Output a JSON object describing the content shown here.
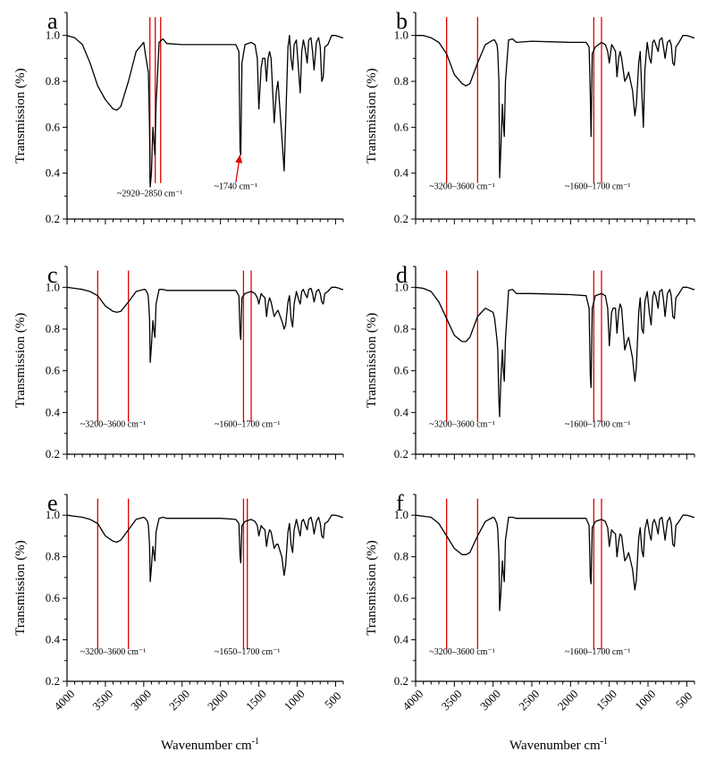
{
  "figure": {
    "xlabel": "Wavenumber cm",
    "xlabel_sup": "-1",
    "ylabel": "Transmission (%)"
  },
  "colors": {
    "line": "#000000",
    "marker": "#e00000"
  },
  "chart_data": [
    {
      "type": "line",
      "panel": "a",
      "xlabel": "Wavenumber cm-1",
      "ylabel": "Transmission (%)",
      "xlim": [
        4000,
        400
      ],
      "ylim": [
        0.2,
        1.1
      ],
      "xticks": [
        4000,
        3500,
        3000,
        2500,
        2000,
        1500,
        1000,
        500
      ],
      "yticks": [
        0.2,
        0.4,
        0.6,
        0.8,
        1.0
      ],
      "grid": false,
      "markers": [
        2920,
        2850,
        2780
      ],
      "annotations": [
        {
          "text": "~2920–2850 cm⁻¹",
          "x": 2920,
          "y": 0.3
        },
        {
          "text": "~1740 cm⁻¹",
          "x": 1800,
          "y": 0.33
        }
      ],
      "arrow": {
        "from": [
          1800,
          0.36
        ],
        "to": [
          1745,
          0.48
        ]
      },
      "x": [
        4000,
        3900,
        3800,
        3700,
        3600,
        3500,
        3400,
        3350,
        3300,
        3200,
        3100,
        3000,
        2980,
        2950,
        2940,
        2925,
        2915,
        2900,
        2880,
        2870,
        2855,
        2840,
        2800,
        2750,
        2700,
        2500,
        2000,
        1800,
        1760,
        1745,
        1735,
        1720,
        1680,
        1600,
        1550,
        1520,
        1500,
        1470,
        1450,
        1420,
        1400,
        1380,
        1360,
        1340,
        1300,
        1270,
        1250,
        1200,
        1170,
        1150,
        1120,
        1100,
        1080,
        1060,
        1040,
        1010,
        980,
        960,
        940,
        920,
        900,
        870,
        850,
        820,
        800,
        780,
        750,
        720,
        700,
        680,
        660,
        640,
        600,
        550,
        500,
        450,
        420,
        400
      ],
      "y": [
        1.0,
        0.99,
        0.96,
        0.88,
        0.78,
        0.72,
        0.68,
        0.675,
        0.69,
        0.8,
        0.93,
        0.97,
        0.92,
        0.86,
        0.84,
        0.6,
        0.34,
        0.4,
        0.6,
        0.55,
        0.48,
        0.7,
        0.97,
        0.985,
        0.965,
        0.96,
        0.96,
        0.96,
        0.93,
        0.5,
        0.48,
        0.88,
        0.96,
        0.97,
        0.96,
        0.9,
        0.68,
        0.86,
        0.9,
        0.9,
        0.8,
        0.9,
        0.93,
        0.9,
        0.62,
        0.76,
        0.8,
        0.56,
        0.41,
        0.62,
        0.95,
        1.0,
        0.9,
        0.85,
        0.96,
        0.98,
        0.84,
        0.75,
        0.93,
        0.98,
        0.95,
        0.88,
        0.98,
        0.99,
        0.93,
        0.85,
        0.97,
        0.99,
        0.95,
        0.8,
        0.82,
        0.95,
        0.96,
        1.0,
        1.0,
        0.995,
        0.99,
        0.99
      ]
    },
    {
      "type": "line",
      "panel": "b",
      "xlabel": "Wavenumber cm-1",
      "ylabel": "Transmission (%)",
      "xlim": [
        4000,
        400
      ],
      "ylim": [
        0.2,
        1.1
      ],
      "xticks": [
        4000,
        3500,
        3000,
        2500,
        2000,
        1500,
        1000,
        500
      ],
      "yticks": [
        0.2,
        0.4,
        0.6,
        0.8,
        1.0
      ],
      "grid": false,
      "markers": [
        3600,
        3200,
        1700,
        1600
      ],
      "annotations": [
        {
          "text": "~3200–3600 cm⁻¹",
          "x": 3400,
          "y": 0.33
        },
        {
          "text": "~1600–1700 cm⁻¹",
          "x": 1650,
          "y": 0.33
        }
      ],
      "x": [
        4000,
        3900,
        3800,
        3700,
        3600,
        3500,
        3400,
        3350,
        3300,
        3200,
        3100,
        3000,
        2980,
        2950,
        2940,
        2925,
        2915,
        2900,
        2880,
        2870,
        2855,
        2840,
        2800,
        2750,
        2700,
        2500,
        2000,
        1800,
        1760,
        1745,
        1735,
        1720,
        1680,
        1600,
        1550,
        1520,
        1500,
        1470,
        1450,
        1420,
        1400,
        1380,
        1360,
        1340,
        1300,
        1270,
        1250,
        1200,
        1170,
        1150,
        1120,
        1100,
        1080,
        1060,
        1040,
        1010,
        980,
        960,
        940,
        920,
        900,
        870,
        850,
        820,
        800,
        780,
        750,
        720,
        700,
        680,
        660,
        640,
        600,
        550,
        500,
        450,
        420,
        400
      ],
      "y": [
        1.0,
        1.0,
        0.99,
        0.97,
        0.92,
        0.83,
        0.79,
        0.78,
        0.79,
        0.88,
        0.96,
        0.98,
        0.98,
        0.96,
        0.93,
        0.8,
        0.38,
        0.5,
        0.7,
        0.63,
        0.56,
        0.8,
        0.98,
        0.985,
        0.97,
        0.975,
        0.97,
        0.97,
        0.95,
        0.75,
        0.56,
        0.92,
        0.95,
        0.97,
        0.96,
        0.93,
        0.88,
        0.96,
        0.95,
        0.93,
        0.82,
        0.9,
        0.93,
        0.9,
        0.8,
        0.82,
        0.84,
        0.76,
        0.65,
        0.7,
        0.88,
        0.93,
        0.75,
        0.6,
        0.85,
        0.97,
        0.9,
        0.88,
        0.97,
        0.98,
        0.96,
        0.93,
        0.98,
        0.99,
        0.95,
        0.9,
        0.97,
        0.98,
        0.96,
        0.88,
        0.87,
        0.95,
        0.97,
        1.0,
        1.0,
        0.995,
        0.99,
        0.99
      ]
    },
    {
      "type": "line",
      "panel": "c",
      "xlabel": "Wavenumber cm-1",
      "ylabel": "Transmission (%)",
      "xlim": [
        4000,
        400
      ],
      "ylim": [
        0.2,
        1.1
      ],
      "xticks": [
        4000,
        3500,
        3000,
        2500,
        2000,
        1500,
        1000,
        500
      ],
      "yticks": [
        0.2,
        0.4,
        0.6,
        0.8,
        1.0
      ],
      "grid": false,
      "markers": [
        3600,
        3200,
        1700,
        1600
      ],
      "annotations": [
        {
          "text": "~3200–3600 cm⁻¹",
          "x": 3400,
          "y": 0.33
        },
        {
          "text": "~1600–1700 cm⁻¹",
          "x": 1650,
          "y": 0.33
        }
      ],
      "x": [
        4000,
        3900,
        3800,
        3700,
        3600,
        3500,
        3400,
        3350,
        3300,
        3200,
        3100,
        3000,
        2980,
        2950,
        2940,
        2925,
        2915,
        2900,
        2880,
        2870,
        2855,
        2840,
        2800,
        2750,
        2700,
        2500,
        2000,
        1800,
        1760,
        1745,
        1735,
        1720,
        1680,
        1600,
        1550,
        1520,
        1500,
        1470,
        1450,
        1420,
        1400,
        1380,
        1360,
        1340,
        1300,
        1270,
        1250,
        1200,
        1170,
        1150,
        1120,
        1100,
        1080,
        1060,
        1040,
        1010,
        980,
        960,
        940,
        920,
        900,
        870,
        850,
        820,
        800,
        780,
        750,
        720,
        700,
        680,
        660,
        640,
        600,
        550,
        500,
        450,
        420,
        400
      ],
      "y": [
        1.0,
        0.995,
        0.99,
        0.98,
        0.96,
        0.91,
        0.885,
        0.88,
        0.885,
        0.93,
        0.98,
        0.99,
        0.99,
        0.97,
        0.95,
        0.85,
        0.64,
        0.72,
        0.84,
        0.8,
        0.76,
        0.92,
        0.99,
        0.99,
        0.985,
        0.985,
        0.985,
        0.985,
        0.96,
        0.78,
        0.75,
        0.95,
        0.97,
        0.98,
        0.97,
        0.95,
        0.92,
        0.97,
        0.96,
        0.95,
        0.86,
        0.92,
        0.95,
        0.93,
        0.86,
        0.88,
        0.89,
        0.84,
        0.8,
        0.82,
        0.93,
        0.96,
        0.85,
        0.81,
        0.92,
        0.98,
        0.94,
        0.92,
        0.98,
        0.99,
        0.97,
        0.95,
        0.99,
        0.995,
        0.97,
        0.93,
        0.98,
        0.99,
        0.97,
        0.93,
        0.92,
        0.97,
        0.98,
        1.0,
        1.0,
        0.995,
        0.99,
        0.99
      ]
    },
    {
      "type": "line",
      "panel": "d",
      "xlabel": "Wavenumber cm-1",
      "ylabel": "Transmission (%)",
      "xlim": [
        4000,
        400
      ],
      "ylim": [
        0.2,
        1.1
      ],
      "xticks": [
        4000,
        3500,
        3000,
        2500,
        2000,
        1500,
        1000,
        500
      ],
      "yticks": [
        0.2,
        0.4,
        0.6,
        0.8,
        1.0
      ],
      "grid": false,
      "markers": [
        3600,
        3200,
        1700,
        1600
      ],
      "annotations": [
        {
          "text": "~3200–3600 cm⁻¹",
          "x": 3400,
          "y": 0.33
        },
        {
          "text": "~1600–1700 cm⁻¹",
          "x": 1650,
          "y": 0.33
        }
      ],
      "x": [
        4000,
        3900,
        3800,
        3700,
        3600,
        3500,
        3400,
        3350,
        3300,
        3200,
        3100,
        3000,
        2980,
        2950,
        2940,
        2925,
        2915,
        2900,
        2880,
        2870,
        2855,
        2840,
        2800,
        2750,
        2700,
        2500,
        2000,
        1800,
        1760,
        1745,
        1735,
        1720,
        1680,
        1600,
        1550,
        1520,
        1500,
        1470,
        1450,
        1420,
        1400,
        1380,
        1360,
        1340,
        1300,
        1270,
        1250,
        1200,
        1170,
        1150,
        1120,
        1100,
        1080,
        1060,
        1040,
        1010,
        980,
        960,
        940,
        920,
        900,
        870,
        850,
        820,
        800,
        780,
        750,
        720,
        700,
        680,
        660,
        640,
        600,
        550,
        500,
        450,
        420,
        400
      ],
      "y": [
        1.0,
        0.995,
        0.98,
        0.93,
        0.85,
        0.77,
        0.74,
        0.74,
        0.76,
        0.86,
        0.9,
        0.88,
        0.85,
        0.75,
        0.7,
        0.45,
        0.38,
        0.55,
        0.7,
        0.62,
        0.55,
        0.75,
        0.985,
        0.99,
        0.97,
        0.97,
        0.965,
        0.96,
        0.9,
        0.58,
        0.52,
        0.9,
        0.96,
        0.97,
        0.96,
        0.9,
        0.72,
        0.88,
        0.9,
        0.9,
        0.78,
        0.88,
        0.92,
        0.9,
        0.7,
        0.74,
        0.76,
        0.66,
        0.55,
        0.62,
        0.88,
        0.95,
        0.8,
        0.78,
        0.93,
        0.98,
        0.87,
        0.82,
        0.95,
        0.98,
        0.96,
        0.9,
        0.98,
        0.99,
        0.94,
        0.86,
        0.97,
        0.99,
        0.96,
        0.86,
        0.85,
        0.95,
        0.97,
        1.0,
        1.0,
        0.995,
        0.99,
        0.99
      ]
    },
    {
      "type": "line",
      "panel": "e",
      "xlabel": "Wavenumber cm-1",
      "ylabel": "Transmission (%)",
      "xlim": [
        4000,
        400
      ],
      "ylim": [
        0.2,
        1.1
      ],
      "xticks": [
        4000,
        3500,
        3000,
        2500,
        2000,
        1500,
        1000,
        500
      ],
      "yticks": [
        0.2,
        0.4,
        0.6,
        0.8,
        1.0
      ],
      "grid": false,
      "markers": [
        3600,
        3200,
        1700,
        1650
      ],
      "annotations": [
        {
          "text": "~3200–3600 cm⁻¹",
          "x": 3400,
          "y": 0.33
        },
        {
          "text": "~1650–1700 cm⁻¹",
          "x": 1650,
          "y": 0.33
        }
      ],
      "x": [
        4000,
        3900,
        3800,
        3700,
        3600,
        3500,
        3400,
        3350,
        3300,
        3200,
        3100,
        3000,
        2980,
        2950,
        2940,
        2925,
        2915,
        2900,
        2880,
        2870,
        2855,
        2840,
        2800,
        2750,
        2700,
        2500,
        2000,
        1800,
        1760,
        1745,
        1735,
        1720,
        1680,
        1600,
        1550,
        1520,
        1500,
        1470,
        1450,
        1420,
        1400,
        1380,
        1360,
        1340,
        1300,
        1270,
        1250,
        1200,
        1170,
        1150,
        1120,
        1100,
        1080,
        1060,
        1040,
        1010,
        980,
        960,
        940,
        920,
        900,
        870,
        850,
        820,
        800,
        780,
        750,
        720,
        700,
        680,
        660,
        640,
        600,
        550,
        500,
        450,
        420,
        400
      ],
      "y": [
        1.0,
        0.995,
        0.99,
        0.98,
        0.96,
        0.9,
        0.875,
        0.87,
        0.88,
        0.93,
        0.98,
        0.99,
        0.985,
        0.97,
        0.95,
        0.86,
        0.68,
        0.75,
        0.85,
        0.82,
        0.78,
        0.92,
        0.985,
        0.99,
        0.985,
        0.985,
        0.985,
        0.98,
        0.96,
        0.8,
        0.77,
        0.95,
        0.97,
        0.98,
        0.97,
        0.95,
        0.9,
        0.95,
        0.94,
        0.93,
        0.85,
        0.9,
        0.93,
        0.92,
        0.84,
        0.86,
        0.86,
        0.8,
        0.71,
        0.76,
        0.92,
        0.96,
        0.86,
        0.82,
        0.93,
        0.98,
        0.93,
        0.9,
        0.97,
        0.98,
        0.96,
        0.93,
        0.98,
        0.99,
        0.96,
        0.91,
        0.97,
        0.99,
        0.96,
        0.9,
        0.89,
        0.96,
        0.97,
        1.0,
        1.0,
        0.995,
        0.99,
        0.99
      ]
    },
    {
      "type": "line",
      "panel": "f",
      "xlabel": "Wavenumber cm-1",
      "ylabel": "Transmission (%)",
      "xlim": [
        4000,
        400
      ],
      "ylim": [
        0.2,
        1.1
      ],
      "xticks": [
        4000,
        3500,
        3000,
        2500,
        2000,
        1500,
        1000,
        500
      ],
      "yticks": [
        0.2,
        0.4,
        0.6,
        0.8,
        1.0
      ],
      "grid": false,
      "markers": [
        3600,
        3200,
        1700,
        1600
      ],
      "annotations": [
        {
          "text": "~3200–3600 cm⁻¹",
          "x": 3400,
          "y": 0.33
        },
        {
          "text": "~1600–1700 cm⁻¹",
          "x": 1650,
          "y": 0.33
        }
      ],
      "x": [
        4000,
        3900,
        3800,
        3700,
        3600,
        3500,
        3400,
        3350,
        3300,
        3200,
        3100,
        3000,
        2980,
        2950,
        2940,
        2925,
        2915,
        2900,
        2880,
        2870,
        2855,
        2840,
        2800,
        2750,
        2700,
        2500,
        2000,
        1800,
        1760,
        1745,
        1735,
        1720,
        1680,
        1600,
        1550,
        1520,
        1500,
        1470,
        1450,
        1420,
        1400,
        1380,
        1360,
        1340,
        1300,
        1270,
        1250,
        1200,
        1170,
        1150,
        1120,
        1100,
        1080,
        1060,
        1040,
        1010,
        980,
        960,
        940,
        920,
        900,
        870,
        850,
        820,
        800,
        780,
        750,
        720,
        700,
        680,
        660,
        640,
        600,
        550,
        500,
        450,
        420,
        400
      ],
      "y": [
        1.0,
        0.995,
        0.99,
        0.96,
        0.9,
        0.84,
        0.81,
        0.81,
        0.82,
        0.9,
        0.97,
        0.99,
        0.985,
        0.96,
        0.93,
        0.8,
        0.54,
        0.62,
        0.78,
        0.73,
        0.68,
        0.88,
        0.99,
        0.99,
        0.985,
        0.985,
        0.985,
        0.985,
        0.95,
        0.7,
        0.67,
        0.94,
        0.97,
        0.98,
        0.97,
        0.94,
        0.85,
        0.93,
        0.92,
        0.91,
        0.8,
        0.87,
        0.91,
        0.9,
        0.78,
        0.8,
        0.82,
        0.74,
        0.64,
        0.69,
        0.89,
        0.94,
        0.83,
        0.8,
        0.93,
        0.98,
        0.91,
        0.88,
        0.96,
        0.98,
        0.96,
        0.91,
        0.98,
        0.99,
        0.94,
        0.88,
        0.97,
        0.99,
        0.96,
        0.86,
        0.85,
        0.95,
        0.97,
        1.0,
        1.0,
        0.995,
        0.99,
        0.99
      ]
    }
  ]
}
